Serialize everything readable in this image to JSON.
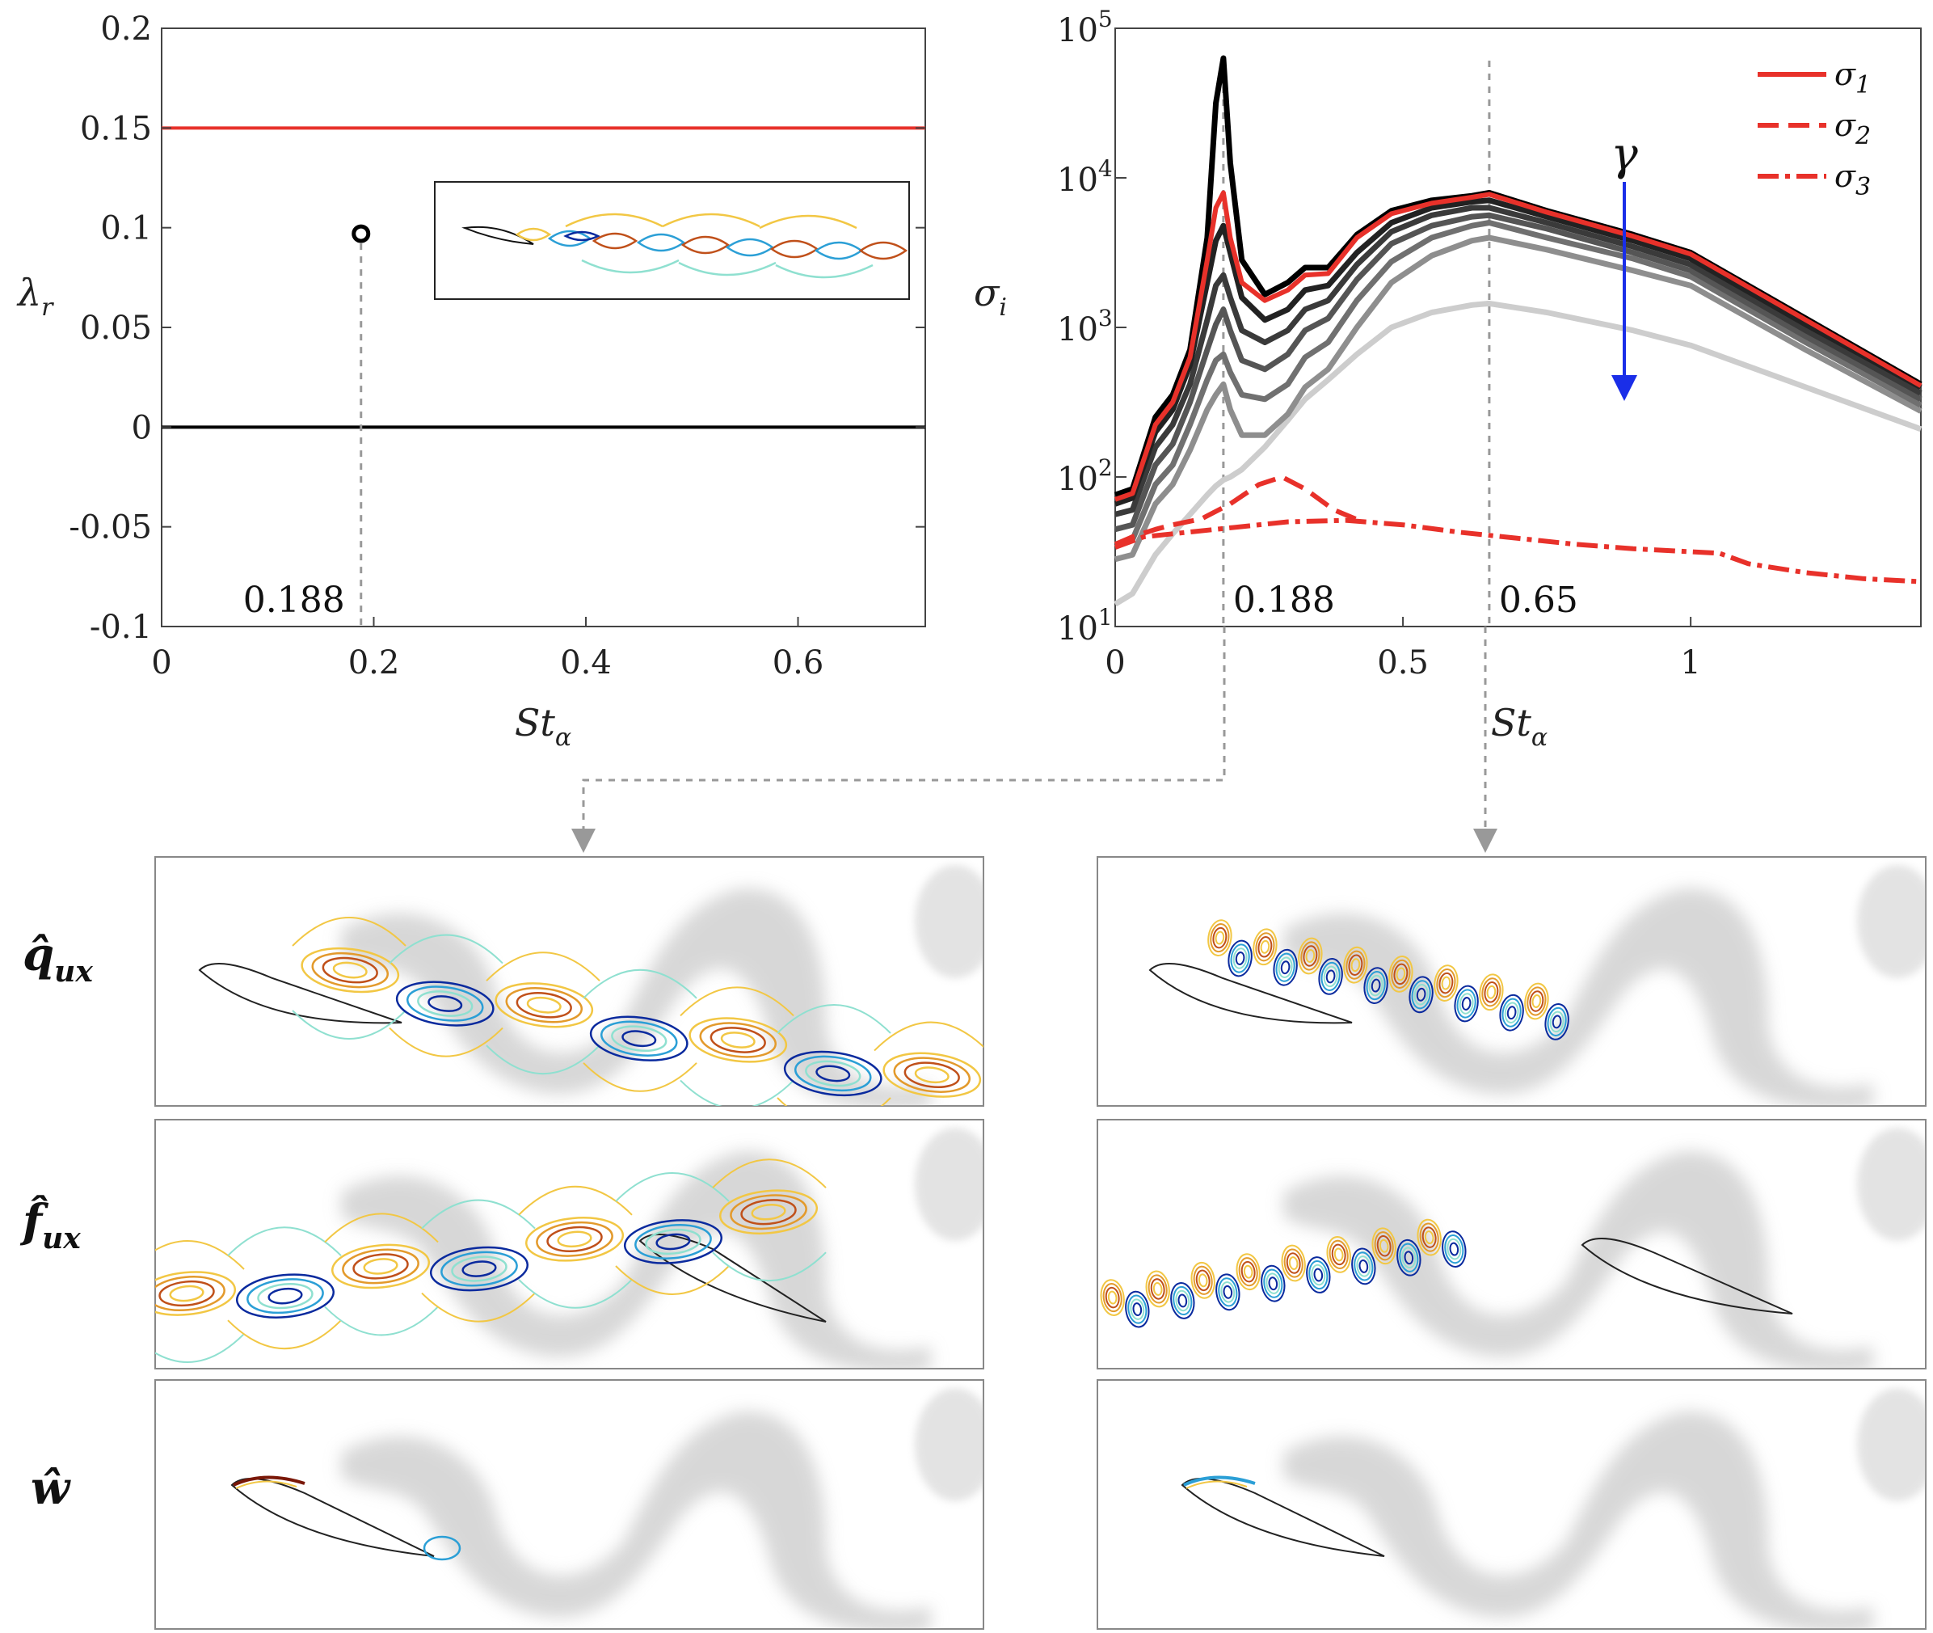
{
  "chart_data": [
    {
      "type": "scatter",
      "name": "eigenvalue-spectrum",
      "xlabel": "St",
      "xlabel_sub": "α",
      "ylabel": "λ",
      "ylabel_sub": "r",
      "xlim": [
        0,
        0.72
      ],
      "ylim": [
        -0.1,
        0.2
      ],
      "x_ticks": [
        "0",
        "0.2",
        "0.4",
        "0.6"
      ],
      "x_tick_values": [
        0,
        0.2,
        0.4,
        0.6
      ],
      "y_ticks": [
        "0.2",
        "0.15",
        "0.1",
        "0.05",
        "0",
        "-0.05",
        "-0.1"
      ],
      "y_tick_values": [
        0.2,
        0.15,
        0.1,
        0.05,
        0,
        -0.05,
        -0.1
      ],
      "hlines": [
        {
          "y": 0.15,
          "color": "#e8312a"
        },
        {
          "y": 0,
          "color": "#000000"
        }
      ],
      "points": [
        {
          "x": 0.188,
          "y": 0.097
        }
      ],
      "marker_label": "0.188"
    },
    {
      "type": "line",
      "name": "resolvent-gains",
      "xlabel": "St",
      "xlabel_sub": "α",
      "ylabel": "σ",
      "ylabel_sub": "i",
      "yscale": "log",
      "xlim": [
        0,
        1.4
      ],
      "ylim_exp": [
        1,
        5
      ],
      "x_ticks": [
        "0",
        "0.5",
        "1"
      ],
      "x_tick_values": [
        0,
        0.5,
        1
      ],
      "y_tick_base": "10",
      "y_tick_exps": [
        "5",
        "4",
        "3",
        "2",
        "1"
      ],
      "y_tick_values": [
        5,
        4,
        3,
        2,
        1
      ],
      "legend": [
        "σ1",
        "σ2",
        "σ3"
      ],
      "legend_base": "σ",
      "legend_subs": [
        "1",
        "2",
        "3"
      ],
      "arrow_label": "γ",
      "marker_labels": [
        "0.188",
        "0.65"
      ],
      "marker_x": [
        0.188,
        0.65
      ],
      "gamma_series": [
        {
          "color": "#000000",
          "x": [
            0,
            0.03,
            0.07,
            0.1,
            0.13,
            0.16,
            0.175,
            0.188,
            0.2,
            0.22,
            0.26,
            0.3,
            0.33,
            0.37,
            0.42,
            0.48,
            0.55,
            0.62,
            0.65,
            0.75,
            0.9,
            1.0,
            1.2,
            1.4
          ],
          "log10y": [
            1.88,
            1.92,
            2.4,
            2.55,
            2.85,
            3.6,
            4.5,
            4.8,
            4.1,
            3.45,
            3.22,
            3.3,
            3.4,
            3.4,
            3.62,
            3.78,
            3.85,
            3.88,
            3.9,
            3.78,
            3.62,
            3.5,
            3.06,
            2.62
          ]
        },
        {
          "color": "#222222",
          "x": [
            0,
            0.03,
            0.07,
            0.1,
            0.13,
            0.16,
            0.175,
            0.188,
            0.2,
            0.22,
            0.26,
            0.3,
            0.33,
            0.37,
            0.42,
            0.48,
            0.55,
            0.62,
            0.65,
            0.75,
            0.9,
            1.0,
            1.2,
            1.4
          ],
          "log10y": [
            1.82,
            1.86,
            2.3,
            2.45,
            2.75,
            3.3,
            3.58,
            3.68,
            3.5,
            3.2,
            3.05,
            3.12,
            3.25,
            3.28,
            3.5,
            3.7,
            3.8,
            3.84,
            3.85,
            3.74,
            3.58,
            3.46,
            3.02,
            2.6
          ]
        },
        {
          "color": "#3a3a3a",
          "x": [
            0,
            0.03,
            0.07,
            0.1,
            0.13,
            0.16,
            0.175,
            0.188,
            0.2,
            0.22,
            0.26,
            0.3,
            0.33,
            0.37,
            0.42,
            0.48,
            0.55,
            0.62,
            0.65,
            0.75,
            0.9,
            1.0,
            1.2,
            1.4
          ],
          "log10y": [
            1.75,
            1.78,
            2.2,
            2.35,
            2.62,
            3.05,
            3.28,
            3.35,
            3.2,
            2.98,
            2.9,
            2.98,
            3.12,
            3.18,
            3.42,
            3.64,
            3.75,
            3.8,
            3.8,
            3.7,
            3.54,
            3.42,
            2.98,
            2.56
          ]
        },
        {
          "color": "#555555",
          "x": [
            0,
            0.03,
            0.07,
            0.1,
            0.13,
            0.16,
            0.175,
            0.188,
            0.2,
            0.22,
            0.26,
            0.3,
            0.33,
            0.37,
            0.42,
            0.48,
            0.55,
            0.62,
            0.65,
            0.75,
            0.9,
            1.0,
            1.2,
            1.4
          ],
          "log10y": [
            1.65,
            1.68,
            2.08,
            2.22,
            2.5,
            2.85,
            3.02,
            3.12,
            2.98,
            2.78,
            2.72,
            2.82,
            2.98,
            3.06,
            3.32,
            3.56,
            3.68,
            3.74,
            3.75,
            3.66,
            3.5,
            3.38,
            2.94,
            2.52
          ]
        },
        {
          "color": "#707070",
          "x": [
            0,
            0.03,
            0.07,
            0.1,
            0.13,
            0.16,
            0.175,
            0.188,
            0.2,
            0.22,
            0.26,
            0.3,
            0.33,
            0.37,
            0.42,
            0.48,
            0.55,
            0.62,
            0.65,
            0.75,
            0.9,
            1.0,
            1.2,
            1.4
          ],
          "log10y": [
            1.55,
            1.58,
            1.95,
            2.08,
            2.35,
            2.65,
            2.78,
            2.82,
            2.7,
            2.55,
            2.52,
            2.62,
            2.8,
            2.9,
            3.18,
            3.44,
            3.6,
            3.68,
            3.7,
            3.6,
            3.46,
            3.34,
            2.9,
            2.48
          ]
        },
        {
          "color": "#8e8e8e",
          "x": [
            0,
            0.03,
            0.07,
            0.1,
            0.13,
            0.16,
            0.175,
            0.188,
            0.2,
            0.22,
            0.26,
            0.3,
            0.33,
            0.37,
            0.42,
            0.48,
            0.55,
            0.62,
            0.65,
            0.75,
            0.9,
            1.0,
            1.2,
            1.4
          ],
          "log10y": [
            1.45,
            1.48,
            1.82,
            1.95,
            2.18,
            2.45,
            2.55,
            2.62,
            2.45,
            2.28,
            2.28,
            2.42,
            2.6,
            2.72,
            3.0,
            3.3,
            3.48,
            3.58,
            3.6,
            3.52,
            3.38,
            3.28,
            2.85,
            2.44
          ]
        },
        {
          "color": "#cdcdcd",
          "x": [
            0,
            0.03,
            0.07,
            0.1,
            0.13,
            0.16,
            0.175,
            0.188,
            0.2,
            0.22,
            0.26,
            0.3,
            0.33,
            0.37,
            0.42,
            0.48,
            0.55,
            0.62,
            0.65,
            0.75,
            0.9,
            1.0,
            1.2,
            1.4
          ],
          "log10y": [
            1.15,
            1.22,
            1.48,
            1.62,
            1.75,
            1.88,
            1.94,
            1.98,
            2.0,
            2.05,
            2.2,
            2.38,
            2.52,
            2.65,
            2.82,
            3.0,
            3.1,
            3.15,
            3.16,
            3.1,
            2.98,
            2.88,
            2.6,
            2.32
          ]
        }
      ],
      "series": [
        {
          "name": "σ1",
          "style": "solid",
          "color": "#e8312a",
          "x": [
            0,
            0.03,
            0.07,
            0.1,
            0.13,
            0.16,
            0.175,
            0.188,
            0.2,
            0.22,
            0.26,
            0.3,
            0.33,
            0.37,
            0.42,
            0.48,
            0.55,
            0.62,
            0.65,
            0.75,
            0.9,
            1.0,
            1.2,
            1.4
          ],
          "log10y": [
            1.85,
            1.89,
            2.35,
            2.5,
            2.8,
            3.45,
            3.8,
            3.9,
            3.6,
            3.3,
            3.18,
            3.25,
            3.35,
            3.36,
            3.6,
            3.76,
            3.83,
            3.87,
            3.89,
            3.77,
            3.61,
            3.49,
            3.05,
            2.61
          ]
        },
        {
          "name": "σ2",
          "style": "dashed",
          "color": "#e8312a",
          "x": [
            0,
            0.03,
            0.07,
            0.1,
            0.15,
            0.2,
            0.25,
            0.29,
            0.33,
            0.38,
            0.43
          ],
          "log10y": [
            1.55,
            1.6,
            1.65,
            1.68,
            1.72,
            1.82,
            1.95,
            2.0,
            1.92,
            1.78,
            1.7
          ]
        },
        {
          "name": "σ3",
          "style": "dashdot",
          "color": "#e8312a",
          "x": [
            0,
            0.05,
            0.1,
            0.2,
            0.3,
            0.4,
            0.5,
            0.6,
            0.7,
            0.8,
            0.9,
            1.0,
            1.05,
            1.1,
            1.2,
            1.3,
            1.4
          ],
          "log10y": [
            1.53,
            1.6,
            1.62,
            1.66,
            1.7,
            1.71,
            1.68,
            1.63,
            1.59,
            1.55,
            1.52,
            1.5,
            1.49,
            1.42,
            1.36,
            1.32,
            1.3
          ]
        }
      ]
    }
  ],
  "mode_panels": {
    "row_labels": [
      "q̂",
      "f̂",
      "ŵ"
    ],
    "row_label_subs": [
      "ux",
      "ux",
      ""
    ],
    "columns": [
      "0.188",
      "0.65"
    ]
  }
}
